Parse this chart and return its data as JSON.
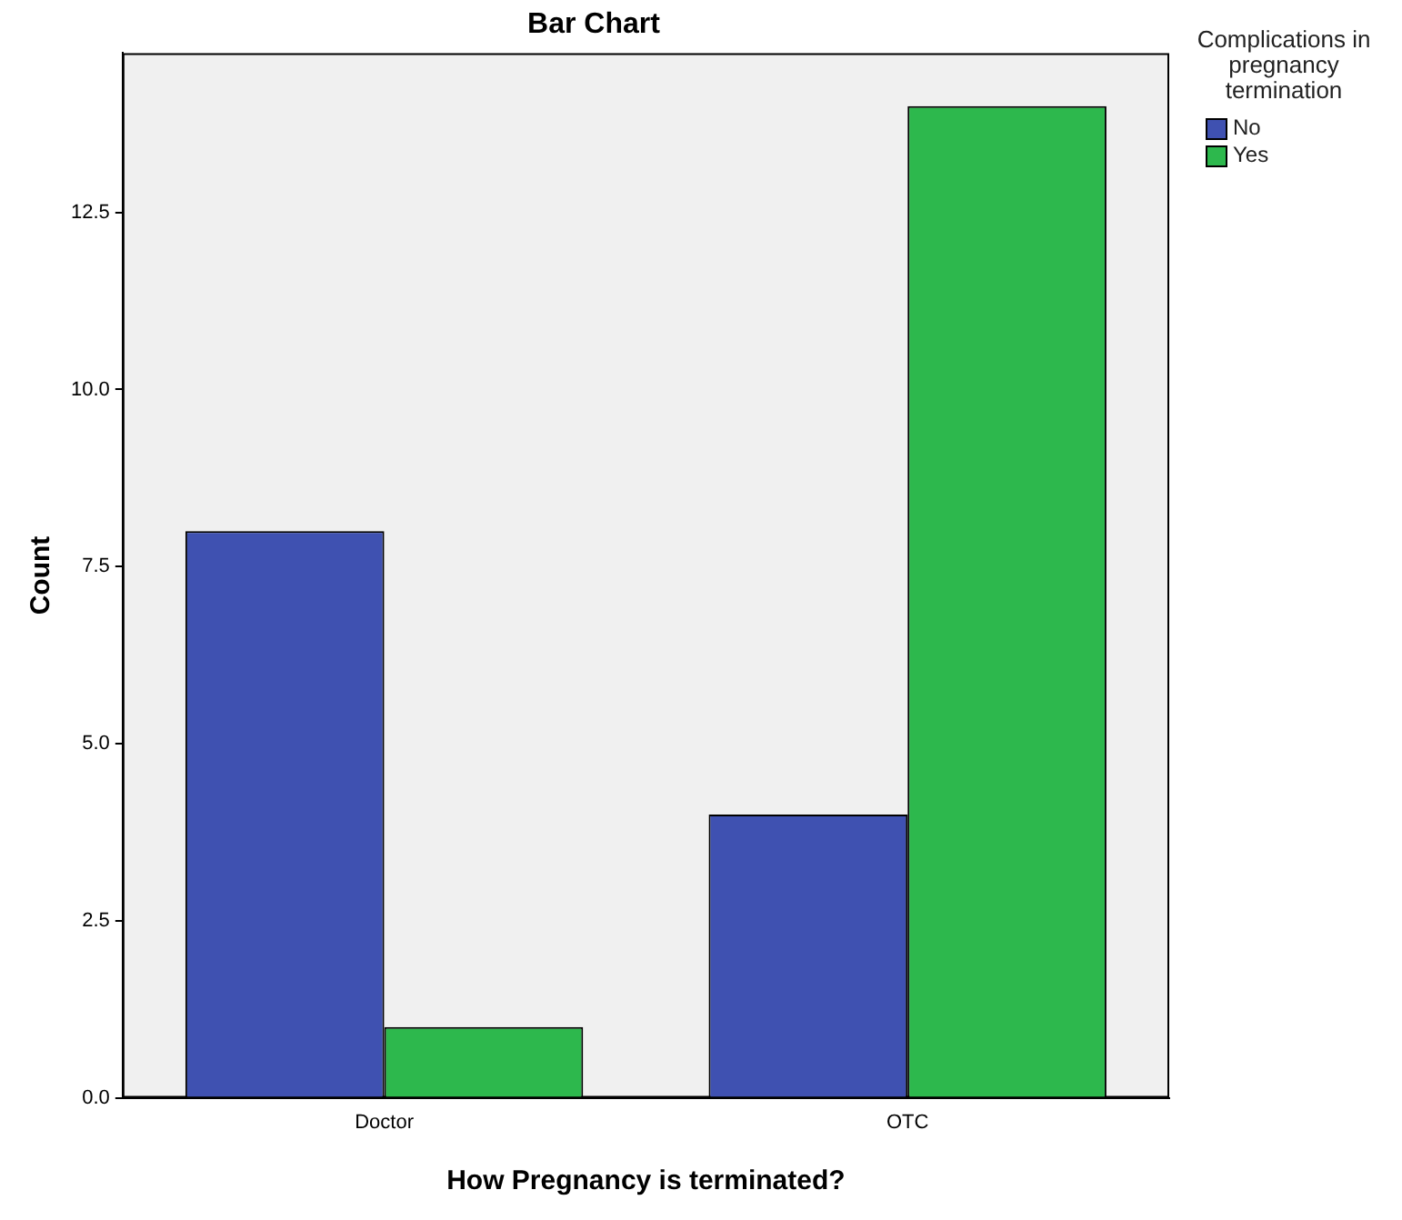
{
  "chart_data": {
    "type": "bar",
    "title": "Bar Chart",
    "xlabel": "How Pregnancy is terminated?",
    "ylabel": "Count",
    "legend_title": "Complications in pregnancy termination",
    "categories": [
      "Doctor",
      "OTC"
    ],
    "series": [
      {
        "name": "No",
        "color": "#3f51b1",
        "values": [
          8,
          4
        ]
      },
      {
        "name": "Yes",
        "color": "#2db84d",
        "values": [
          1,
          14
        ]
      }
    ],
    "ylim": [
      0,
      14.75
    ],
    "yticks": [
      {
        "value": 0,
        "label": "0.0"
      },
      {
        "value": 2.5,
        "label": "2.5"
      },
      {
        "value": 5,
        "label": "5.0"
      },
      {
        "value": 7.5,
        "label": "7.5"
      },
      {
        "value": 10,
        "label": "10.0"
      },
      {
        "value": 12.5,
        "label": "12.5"
      }
    ],
    "grid": false,
    "legend": "top right"
  }
}
